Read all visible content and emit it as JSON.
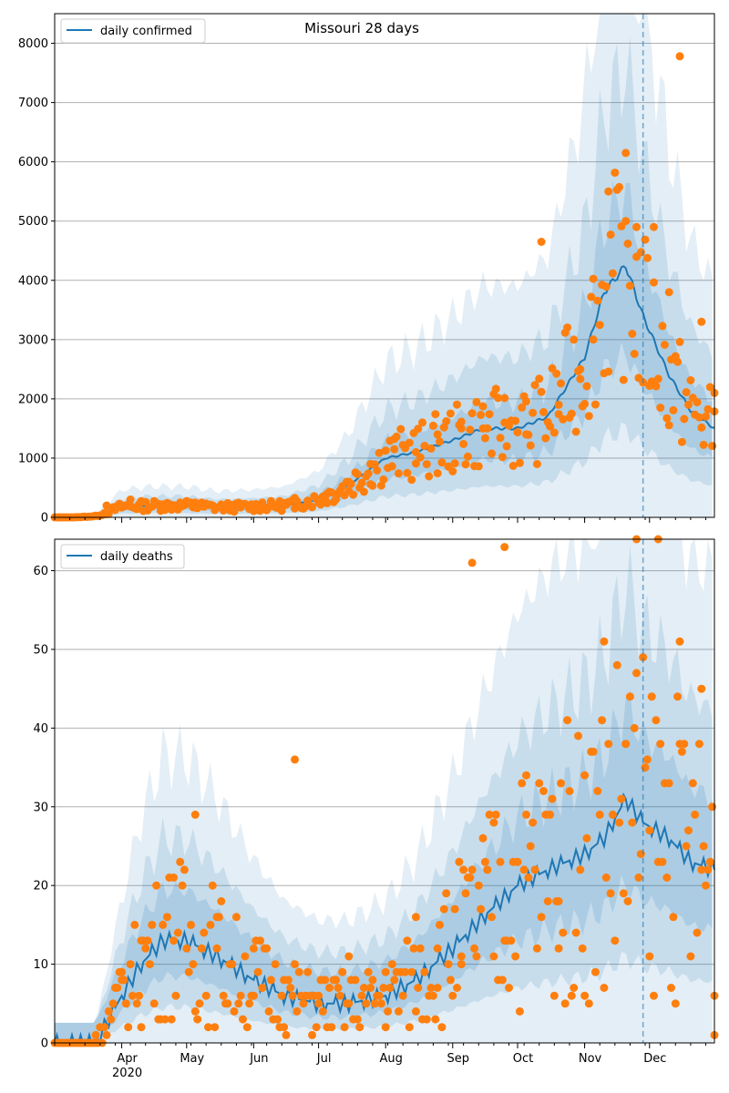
{
  "chart_data": [
    {
      "type": "line",
      "title": "Missouri 28 days",
      "legend": {
        "label": "daily confirmed",
        "position": "top-left"
      },
      "xlabel": "",
      "ylabel": "",
      "x_ticks": [
        "Apr\n2020",
        "May",
        "Jun",
        "Jul",
        "Aug",
        "Sep",
        "Oct",
        "Nov",
        "Dec"
      ],
      "ylim": [
        0,
        8500
      ],
      "y_ticks": [
        0,
        1000,
        2000,
        3000,
        4000,
        5000,
        6000,
        7000,
        8000
      ],
      "grid": "horizontal",
      "vline_date": "Nov 28",
      "series": [
        {
          "name": "daily confirmed",
          "kind": "median_line",
          "color": "#1f77b4",
          "x": [
            "Mar 1",
            "Mar 10",
            "Mar 20",
            "Apr 1",
            "Apr 15",
            "May 1",
            "May 15",
            "Jun 1",
            "Jun 15",
            "Jul 1",
            "Jul 15",
            "Aug 1",
            "Aug 15",
            "Sep 1",
            "Sep 15",
            "Oct 1",
            "Oct 15",
            "Nov 1",
            "Nov 10",
            "Nov 20",
            "Nov 28",
            "Dec 10",
            "Dec 20",
            "Dec 31"
          ],
          "values": [
            0,
            0,
            20,
            180,
            200,
            200,
            170,
            180,
            200,
            300,
            550,
            1000,
            1100,
            1300,
            1500,
            1500,
            1700,
            2700,
            3800,
            4250,
            3400,
            2400,
            1800,
            1500
          ]
        },
        {
          "name": "",
          "kind": "observed",
          "color": "#ff7f0e",
          "x": [
            "Mar 5",
            "Mar 25",
            "Apr 5",
            "Apr 20",
            "May 5",
            "May 20",
            "Jun 5",
            "Jun 20",
            "Jul 5",
            "Jul 15",
            "Jul 25",
            "Aug 5",
            "Aug 15",
            "Aug 25",
            "Sep 5",
            "Sep 15",
            "Sep 25",
            "Oct 5",
            "Oct 12",
            "Oct 20",
            "Oct 30",
            "Nov 5",
            "Nov 12",
            "Nov 20",
            "Nov 25",
            "Dec 3",
            "Dec 10",
            "Dec 15",
            "Dec 25",
            "Dec 31"
          ],
          "values": [
            0,
            200,
            300,
            220,
            250,
            200,
            250,
            150,
            400,
            600,
            900,
            1150,
            1100,
            1400,
            1500,
            1500,
            1600,
            1400,
            4650,
            1900,
            2500,
            3000,
            5500,
            5000,
            4900,
            4900,
            3800,
            7780,
            3300,
            2100
          ]
        }
      ]
    },
    {
      "type": "line",
      "title": "",
      "legend": {
        "label": "daily deaths",
        "position": "top-left"
      },
      "xlabel": "",
      "ylabel": "",
      "x_ticks": [
        "Apr\n2020",
        "May",
        "Jun",
        "Jul",
        "Aug",
        "Sep",
        "Oct",
        "Nov",
        "Dec"
      ],
      "ylim": [
        0,
        64
      ],
      "y_ticks": [
        0,
        10,
        20,
        30,
        40,
        50,
        60
      ],
      "grid": "horizontal",
      "vline_date": "Nov 28",
      "series": [
        {
          "name": "daily deaths",
          "kind": "median_line",
          "color": "#1f77b4",
          "x": [
            "Mar 1",
            "Mar 20",
            "Apr 1",
            "Apr 10",
            "Apr 20",
            "May 1",
            "May 15",
            "Jun 1",
            "Jun 15",
            "Jul 1",
            "Jul 15",
            "Aug 1",
            "Aug 15",
            "Sep 1",
            "Sep 15",
            "Oct 1",
            "Oct 15",
            "Nov 1",
            "Nov 10",
            "Nov 20",
            "Nov 28",
            "Dec 10",
            "Dec 20",
            "Dec 31"
          ],
          "values": [
            0,
            0,
            6,
            10,
            13,
            13,
            11,
            8,
            6,
            5,
            5,
            6,
            8,
            12,
            16,
            20,
            22,
            24,
            26,
            31,
            28,
            26,
            23,
            22
          ]
        },
        {
          "name": "",
          "kind": "observed",
          "color": "#ff7f0e",
          "x": [
            "Mar 20",
            "Apr 1",
            "Apr 10",
            "Apr 25",
            "May 5",
            "May 15",
            "Jun 1",
            "Jun 15",
            "Jun 20",
            "Jul 1",
            "Jul 15",
            "Aug 1",
            "Aug 15",
            "Aug 25",
            "Sep 5",
            "Sep 10",
            "Sep 20",
            "Sep 25",
            "Oct 5",
            "Oct 20",
            "Nov 1",
            "Nov 10",
            "Nov 20",
            "Nov 25",
            "Dec 1",
            "Dec 5",
            "Dec 15",
            "Dec 25",
            "Dec 31"
          ],
          "values": [
            1,
            8,
            13,
            21,
            29,
            12,
            6,
            8,
            36,
            5,
            11,
            9,
            16,
            12,
            10,
            61,
            28,
            63,
            29,
            12,
            34,
            51,
            38,
            64,
            11,
            64,
            51,
            45,
            1
          ]
        }
      ]
    }
  ]
}
